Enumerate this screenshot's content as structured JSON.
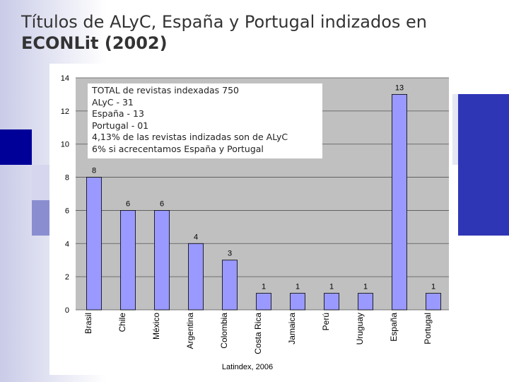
{
  "slide": {
    "title_line1": "Títulos de ALyC, España y Portugal indizados en",
    "title_line2": "ECONLit (2002)",
    "source": "Latindex, 2006"
  },
  "info_box": {
    "lines": [
      "TOTAL de revistas indexadas 750",
      "ALyC - 31",
      "España - 13",
      "Portugal - 01",
      "4,13% de las revistas indizadas son de ALyC",
      "6% si acrecentamos España y Portugal"
    ]
  },
  "colors": {
    "bar": "#9999ff",
    "plot_bg": "#c0c0c0",
    "accent_navy": "#000099",
    "accent_blue": "#2f36b6"
  },
  "chart_data": {
    "type": "bar",
    "categories": [
      "Brasil",
      "Chile",
      "México",
      "Argentina",
      "Colombia",
      "Costa Rica",
      "Jamaica",
      "Perú",
      "Uruguay",
      "España",
      "Portugal"
    ],
    "values": [
      8,
      6,
      6,
      4,
      3,
      1,
      1,
      1,
      1,
      13,
      1
    ],
    "ylim": [
      0,
      14
    ],
    "yticks": [
      0,
      2,
      4,
      6,
      8,
      10,
      12,
      14
    ],
    "grid": true,
    "legend": "none",
    "data_labels": true
  }
}
